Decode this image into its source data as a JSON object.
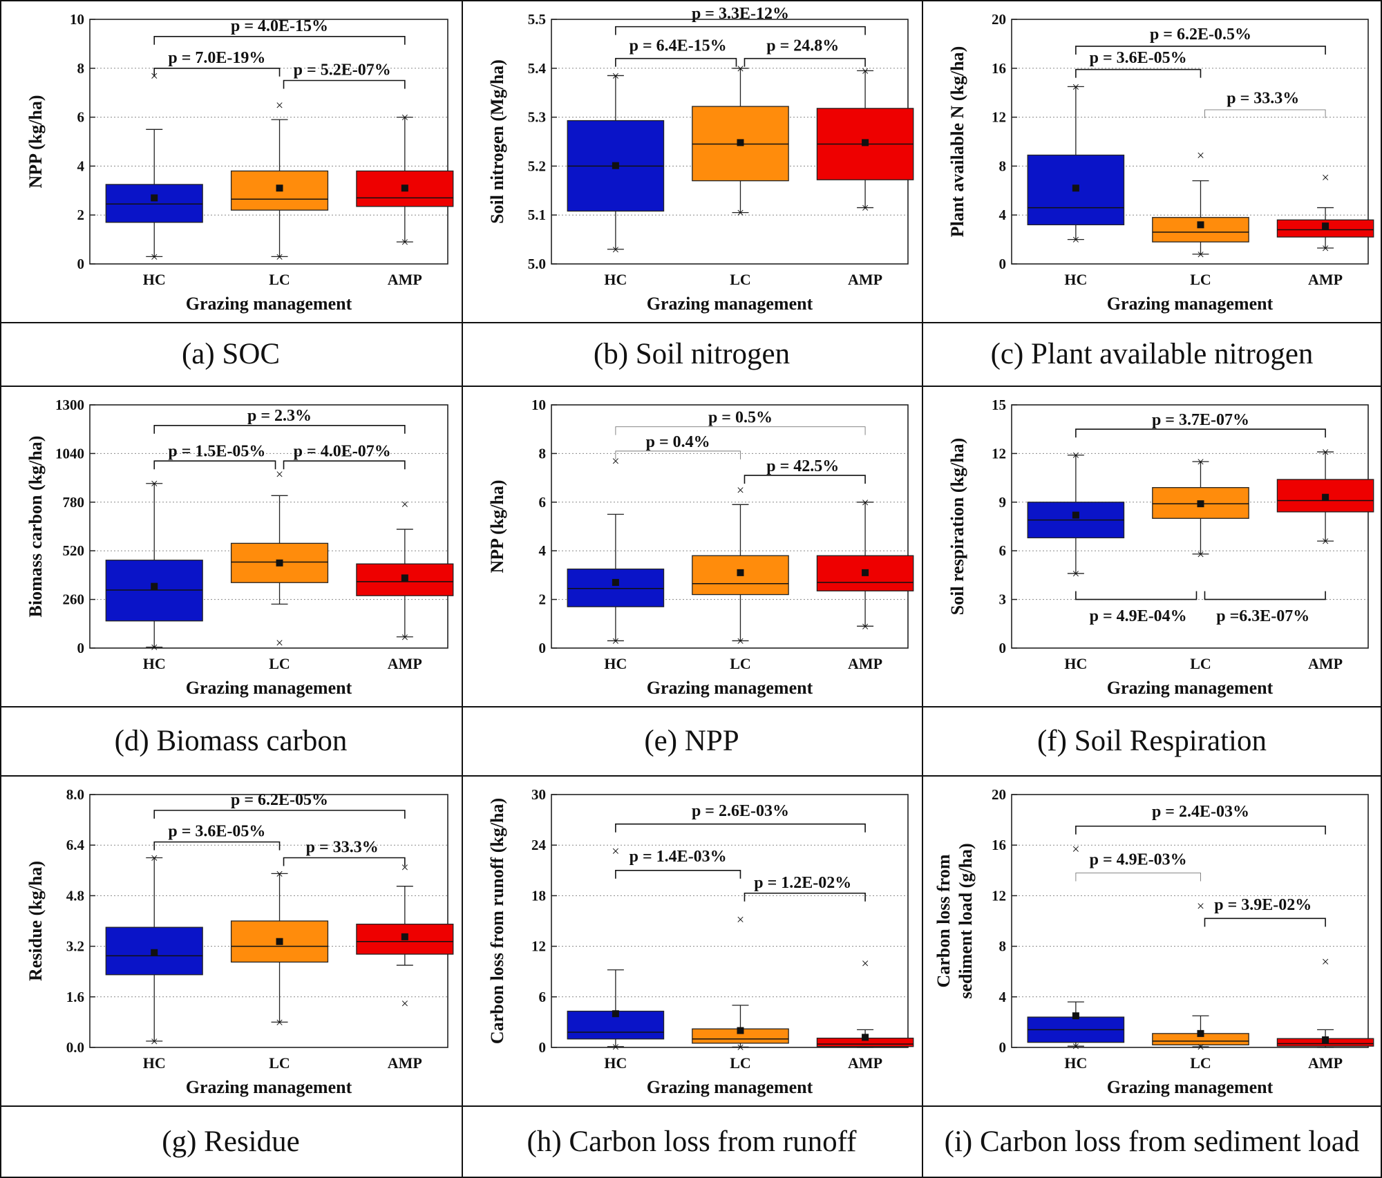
{
  "colors": {
    "HC": "#0a14c8",
    "LC": "#ff8c0c",
    "AMP": "#ee0000",
    "stroke": "#222222",
    "grid": "#888888"
  },
  "chart_data": [
    {
      "type": "box",
      "caption": "(a) SOC",
      "xlabel": "Grazing management",
      "ylabel": "NPP  (kg/ha)",
      "ylim": [
        0,
        10
      ],
      "yticks": [
        0,
        2,
        4,
        6,
        8,
        10
      ],
      "ytick_labels": [
        "0",
        "2",
        "4",
        "6",
        "8",
        "10"
      ],
      "categories": [
        "HC",
        "LC",
        "AMP"
      ],
      "boxes": [
        {
          "q1": 1.7,
          "median": 2.45,
          "q3": 3.25,
          "mean": 2.7,
          "wlow": 0.3,
          "whigh": 5.5,
          "outliers": [
            0.3,
            7.7
          ]
        },
        {
          "q1": 2.2,
          "median": 2.65,
          "q3": 3.8,
          "mean": 3.1,
          "wlow": 0.3,
          "whigh": 5.9,
          "outliers": [
            0.3,
            6.5
          ]
        },
        {
          "q1": 2.35,
          "median": 2.7,
          "q3": 3.8,
          "mean": 3.1,
          "wlow": 0.9,
          "whigh": 6.0,
          "outliers": [
            0.9,
            6.0
          ]
        }
      ],
      "annotations": [
        {
          "from": 0,
          "to": 2,
          "label": "p = 4.0E-15%",
          "y": 9.3,
          "label_y": 9.75,
          "thin": false
        },
        {
          "from": 0,
          "to": 1,
          "label": "p = 7.0E-19%",
          "y": 8.0,
          "label_y": 8.45,
          "thin": false
        },
        {
          "from": 1,
          "to": 2,
          "label": "p = 5.2E-07%",
          "y": 7.5,
          "label_y": 7.95,
          "thin": false
        }
      ]
    },
    {
      "type": "box",
      "caption": "(b) Soil nitrogen",
      "xlabel": "Grazing management",
      "ylabel": "Soil nitrogen (Mg/ha)",
      "ylim": [
        5.0,
        5.5
      ],
      "yticks": [
        5.0,
        5.1,
        5.2,
        5.3,
        5.4,
        5.5
      ],
      "ytick_labels": [
        "5.0",
        "5.1",
        "5.2",
        "5.3",
        "5.4",
        "5.5"
      ],
      "categories": [
        "HC",
        "LC",
        "AMP"
      ],
      "boxes": [
        {
          "q1": 5.108,
          "median": 5.2,
          "q3": 5.293,
          "mean": 5.201,
          "wlow": 5.03,
          "whigh": 5.385,
          "outliers": [
            5.03,
            5.385
          ]
        },
        {
          "q1": 5.17,
          "median": 5.245,
          "q3": 5.322,
          "mean": 5.248,
          "wlow": 5.105,
          "whigh": 5.4,
          "outliers": [
            5.105,
            5.4
          ]
        },
        {
          "q1": 5.172,
          "median": 5.245,
          "q3": 5.318,
          "mean": 5.248,
          "wlow": 5.115,
          "whigh": 5.395,
          "outliers": [
            5.115,
            5.395
          ]
        }
      ],
      "annotations": [
        {
          "from": 0,
          "to": 2,
          "label": "p = 3.3E-12%",
          "y": 5.485,
          "label_y": 5.513,
          "thin": false
        },
        {
          "from": 0,
          "to": 1,
          "label": "p = 6.4E-15%",
          "y": 5.42,
          "label_y": 5.447,
          "thin": false
        },
        {
          "from": 1,
          "to": 2,
          "label": "p = 24.8%",
          "y": 5.42,
          "label_y": 5.447,
          "thin": false
        }
      ]
    },
    {
      "type": "box",
      "caption": "(c) Plant available nitrogen",
      "xlabel": "Grazing management",
      "ylabel": "Plant available N (kg/ha)",
      "ylim": [
        0,
        20
      ],
      "yticks": [
        0,
        4,
        8,
        12,
        16,
        20
      ],
      "ytick_labels": [
        "0",
        "4",
        "8",
        "12",
        "16",
        "20"
      ],
      "categories": [
        "HC",
        "LC",
        "AMP"
      ],
      "boxes": [
        {
          "q1": 3.2,
          "median": 4.6,
          "q3": 8.9,
          "mean": 6.2,
          "wlow": 2.0,
          "whigh": 14.5,
          "outliers": [
            2.0,
            14.5
          ]
        },
        {
          "q1": 1.8,
          "median": 2.6,
          "q3": 3.8,
          "mean": 3.2,
          "wlow": 0.8,
          "whigh": 6.8,
          "outliers": [
            0.8,
            8.9
          ]
        },
        {
          "q1": 2.2,
          "median": 2.8,
          "q3": 3.6,
          "mean": 3.1,
          "wlow": 1.3,
          "whigh": 4.6,
          "outliers": [
            1.3,
            7.1
          ]
        }
      ],
      "annotations": [
        {
          "from": 0,
          "to": 2,
          "label": "p = 6.2E-0.5%",
          "y": 17.8,
          "label_y": 18.8,
          "thin": false
        },
        {
          "from": 0,
          "to": 1,
          "label": "p = 3.6E-05%",
          "y": 15.9,
          "label_y": 16.9,
          "thin": false
        },
        {
          "from": 1,
          "to": 2,
          "label": "p = 33.3%",
          "y": 12.6,
          "label_y": 13.6,
          "thin": true
        }
      ]
    },
    {
      "type": "box",
      "caption": "(d) Biomass carbon",
      "xlabel": "Grazing management",
      "ylabel": "Biomass carbon (kg/ha)",
      "ylim": [
        0,
        1300
      ],
      "yticks": [
        0,
        260,
        520,
        780,
        1040,
        1300
      ],
      "ytick_labels": [
        "0",
        "260",
        "520",
        "780",
        "1040",
        "1300"
      ],
      "categories": [
        "HC",
        "LC",
        "AMP"
      ],
      "boxes": [
        {
          "q1": 145,
          "median": 310,
          "q3": 470,
          "mean": 330,
          "wlow": 5,
          "whigh": 880,
          "outliers": [
            5,
            880
          ]
        },
        {
          "q1": 350,
          "median": 460,
          "q3": 560,
          "mean": 455,
          "wlow": 235,
          "whigh": 815,
          "outliers": [
            30,
            930
          ]
        },
        {
          "q1": 280,
          "median": 355,
          "q3": 450,
          "mean": 375,
          "wlow": 60,
          "whigh": 635,
          "outliers": [
            60,
            770
          ]
        }
      ],
      "annotations": [
        {
          "from": 0,
          "to": 2,
          "label": "p = 2.3%",
          "y": 1190,
          "label_y": 1245,
          "thin": false
        },
        {
          "from": 0,
          "to": 1,
          "label": "p = 1.5E-05%",
          "y": 1000,
          "label_y": 1055,
          "thin": false
        },
        {
          "from": 1,
          "to": 2,
          "label": "p = 4.0E-07%",
          "y": 1000,
          "label_y": 1055,
          "thin": false
        }
      ]
    },
    {
      "type": "box",
      "caption": "(e) NPP",
      "xlabel": "Grazing management",
      "ylabel": "NPP  (kg/ha)",
      "ylim": [
        0,
        10
      ],
      "yticks": [
        0,
        2,
        4,
        6,
        8,
        10
      ],
      "ytick_labels": [
        "0",
        "2",
        "4",
        "6",
        "8",
        "10"
      ],
      "categories": [
        "HC",
        "LC",
        "AMP"
      ],
      "boxes": [
        {
          "q1": 1.7,
          "median": 2.45,
          "q3": 3.25,
          "mean": 2.7,
          "wlow": 0.3,
          "whigh": 5.5,
          "outliers": [
            0.3,
            7.7
          ]
        },
        {
          "q1": 2.2,
          "median": 2.65,
          "q3": 3.8,
          "mean": 3.1,
          "wlow": 0.3,
          "whigh": 5.9,
          "outliers": [
            0.3,
            6.5
          ]
        },
        {
          "q1": 2.35,
          "median": 2.7,
          "q3": 3.8,
          "mean": 3.1,
          "wlow": 0.9,
          "whigh": 6.0,
          "outliers": [
            0.9,
            6.0
          ]
        }
      ],
      "annotations": [
        {
          "from": 0,
          "to": 2,
          "label": "p = 0.5%",
          "y": 9.1,
          "label_y": 9.5,
          "thin": true
        },
        {
          "from": 0,
          "to": 1,
          "label": "p = 0.4%",
          "y": 8.1,
          "label_y": 8.5,
          "thin": true
        },
        {
          "from": 1,
          "to": 2,
          "label": "p = 42.5%",
          "y": 7.1,
          "label_y": 7.5,
          "thin": false
        }
      ]
    },
    {
      "type": "box",
      "caption": "(f) Soil Respiration",
      "xlabel": "Grazing management",
      "ylabel": "Soil respiration (kg/ha)",
      "ylim": [
        0,
        15
      ],
      "yticks": [
        0,
        3,
        6,
        9,
        12,
        15
      ],
      "ytick_labels": [
        "0",
        "3",
        "6",
        "9",
        "12",
        "15"
      ],
      "categories": [
        "HC",
        "LC",
        "AMP"
      ],
      "boxes": [
        {
          "q1": 6.8,
          "median": 7.9,
          "q3": 9.0,
          "mean": 8.2,
          "wlow": 4.6,
          "whigh": 11.9,
          "outliers": [
            4.6,
            11.9
          ]
        },
        {
          "q1": 8.0,
          "median": 8.9,
          "q3": 9.9,
          "mean": 8.9,
          "wlow": 5.8,
          "whigh": 11.5,
          "outliers": [
            5.8,
            11.5
          ]
        },
        {
          "q1": 8.4,
          "median": 9.1,
          "q3": 10.4,
          "mean": 9.3,
          "wlow": 6.6,
          "whigh": 12.1,
          "outliers": [
            6.6,
            12.1
          ]
        }
      ],
      "annotations": [
        {
          "from": 0,
          "to": 2,
          "label": "p = 3.7E-07%",
          "y": 13.5,
          "label_y": 14.1,
          "thin": false
        },
        {
          "from": 0,
          "to": 1,
          "label": "p = 4.9E-04%",
          "y": 3.0,
          "label_y": 2.0,
          "thin": false,
          "down": true
        },
        {
          "from": 1,
          "to": 2,
          "label": "p =6.3E-07%",
          "y": 3.0,
          "label_y": 2.0,
          "thin": false,
          "down": true
        }
      ]
    },
    {
      "type": "box",
      "caption": "(g) Residue",
      "xlabel": "Grazing management",
      "ylabel": "Residue (kg/ha)",
      "ylim": [
        0,
        8
      ],
      "yticks": [
        0,
        1.6,
        3.2,
        4.8,
        6.4,
        8
      ],
      "ytick_labels": [
        "0.0",
        "1.6",
        "3.2",
        "4.8",
        "6.4",
        "8.0"
      ],
      "categories": [
        "HC",
        "LC",
        "AMP"
      ],
      "boxes": [
        {
          "q1": 2.3,
          "median": 2.9,
          "q3": 3.8,
          "mean": 3.0,
          "wlow": 0.2,
          "whigh": 6.0,
          "outliers": [
            0.2,
            6.0
          ]
        },
        {
          "q1": 2.7,
          "median": 3.2,
          "q3": 4.0,
          "mean": 3.35,
          "wlow": 0.8,
          "whigh": 5.5,
          "outliers": [
            0.8,
            5.5
          ]
        },
        {
          "q1": 2.95,
          "median": 3.35,
          "q3": 3.9,
          "mean": 3.5,
          "wlow": 2.6,
          "whigh": 5.1,
          "outliers": [
            1.4,
            5.7
          ]
        }
      ],
      "annotations": [
        {
          "from": 0,
          "to": 2,
          "label": "p = 6.2E-05%",
          "y": 7.5,
          "label_y": 7.85,
          "thin": false
        },
        {
          "from": 0,
          "to": 1,
          "label": "p = 3.6E-05%",
          "y": 6.5,
          "label_y": 6.85,
          "thin": false
        },
        {
          "from": 1,
          "to": 2,
          "label": "p = 33.3%",
          "y": 6.0,
          "label_y": 6.35,
          "thin": false
        }
      ]
    },
    {
      "type": "box",
      "caption": "(h) Carbon loss from runoff",
      "xlabel": "Grazing management",
      "ylabel": "Carbon loss from runoff (kg/ha)",
      "ylim": [
        0,
        30
      ],
      "yticks": [
        0,
        6,
        12,
        18,
        24,
        30
      ],
      "ytick_labels": [
        "0",
        "6",
        "12",
        "18",
        "24",
        "30"
      ],
      "categories": [
        "HC",
        "LC",
        "AMP"
      ],
      "boxes": [
        {
          "q1": 1.0,
          "median": 1.8,
          "q3": 4.3,
          "mean": 4.0,
          "wlow": 0.1,
          "whigh": 9.2,
          "outliers": [
            0.1,
            23.3
          ]
        },
        {
          "q1": 0.5,
          "median": 1.0,
          "q3": 2.2,
          "mean": 2.0,
          "wlow": 0.05,
          "whigh": 5.0,
          "outliers": [
            0.05,
            15.2
          ]
        },
        {
          "q1": 0.1,
          "median": 0.4,
          "q3": 1.1,
          "mean": 1.2,
          "wlow": 0.0,
          "whigh": 2.1,
          "outliers": [
            10.0
          ]
        }
      ],
      "annotations": [
        {
          "from": 0,
          "to": 2,
          "label": "p = 2.6E-03%",
          "y": 26.5,
          "label_y": 28.1,
          "thin": false
        },
        {
          "from": 0,
          "to": 1,
          "label": "p = 1.4E-03%",
          "y": 21.0,
          "label_y": 22.7,
          "thin": false
        },
        {
          "from": 1,
          "to": 2,
          "label": "p = 1.2E-02%",
          "y": 18.3,
          "label_y": 19.6,
          "thin": false
        }
      ]
    },
    {
      "type": "box",
      "caption": "(i) Carbon loss from sediment load",
      "xlabel": "Grazing management",
      "ylabel": "Carbon loss from sediment load (g/ha)",
      "ylabel_lines": [
        "Carbon loss from",
        "sediment load (g/ha)"
      ],
      "ylim": [
        0,
        20
      ],
      "yticks": [
        0,
        4,
        8,
        12,
        16,
        20
      ],
      "ytick_labels": [
        "0",
        "4",
        "8",
        "12",
        "16",
        "20"
      ],
      "categories": [
        "HC",
        "LC",
        "AMP"
      ],
      "boxes": [
        {
          "q1": 0.4,
          "median": 1.4,
          "q3": 2.4,
          "mean": 2.5,
          "wlow": 0.1,
          "whigh": 3.6,
          "outliers": [
            0.1,
            15.7
          ]
        },
        {
          "q1": 0.2,
          "median": 0.5,
          "q3": 1.1,
          "mean": 1.1,
          "wlow": 0.05,
          "whigh": 2.5,
          "outliers": [
            0.05,
            11.2
          ]
        },
        {
          "q1": 0.1,
          "median": 0.3,
          "q3": 0.7,
          "mean": 0.6,
          "wlow": 0.0,
          "whigh": 1.4,
          "outliers": [
            6.8
          ]
        }
      ],
      "annotations": [
        {
          "from": 0,
          "to": 2,
          "label": "p = 2.4E-03%",
          "y": 17.5,
          "label_y": 18.7,
          "thin": false
        },
        {
          "from": 0,
          "to": 1,
          "label": "p = 4.9E-03%",
          "y": 13.8,
          "label_y": 14.9,
          "thin": true
        },
        {
          "from": 1,
          "to": 2,
          "label": "p = 3.9E-02%",
          "y": 10.2,
          "label_y": 11.3,
          "thin": false
        }
      ]
    }
  ]
}
